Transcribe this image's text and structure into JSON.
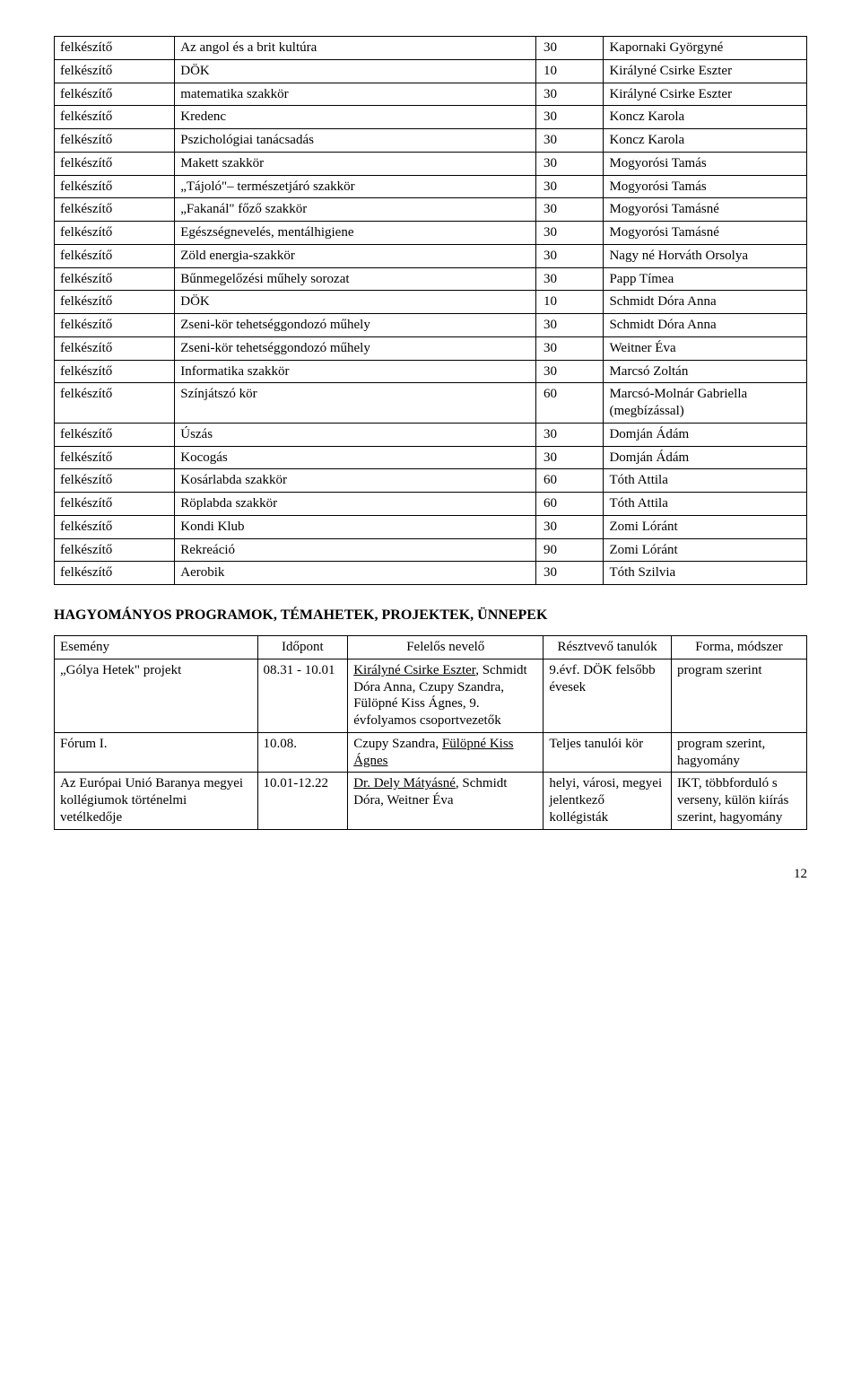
{
  "table1": {
    "rows": [
      [
        "felkészítő",
        "Az angol és a brit kultúra",
        "30",
        "Kapornaki Györgyné"
      ],
      [
        "felkészítő",
        "DÖK",
        "10",
        "Királyné Csirke Eszter"
      ],
      [
        "felkészítő",
        "matematika szakkör",
        "30",
        "Királyné Csirke Eszter"
      ],
      [
        "felkészítő",
        "Kredenc",
        "30",
        "Koncz Karola"
      ],
      [
        "felkészítő",
        "Pszichológiai tanácsadás",
        "30",
        "Koncz Karola"
      ],
      [
        "felkészítő",
        "Makett szakkör",
        "30",
        "Mogyorósi Tamás"
      ],
      [
        "felkészítő",
        "„Tájoló\"– természetjáró szakkör",
        "30",
        "Mogyorósi Tamás"
      ],
      [
        "felkészítő",
        "„Fakanál\" főző szakkör",
        "30",
        "Mogyorósi Tamásné"
      ],
      [
        "felkészítő",
        "Egészségnevelés, mentálhigiene",
        "30",
        "Mogyorósi Tamásné"
      ],
      [
        "felkészítő",
        "Zöld energia-szakkör",
        "30",
        "Nagy né Horváth Orsolya"
      ],
      [
        "felkészítő",
        "Bűnmegelőzési műhely sorozat",
        "30",
        "Papp Tímea"
      ],
      [
        "felkészítő",
        "DÖK",
        "10",
        "Schmidt Dóra Anna"
      ],
      [
        "felkészítő",
        "Zseni-kör tehetséggondozó műhely",
        "30",
        "Schmidt Dóra Anna"
      ],
      [
        "felkészítő",
        "Zseni-kör tehetséggondozó műhely",
        "30",
        "Weitner Éva"
      ],
      [
        "felkészítő",
        "Informatika szakkör",
        "30",
        "Marcsó Zoltán"
      ],
      [
        "felkészítő",
        "Színjátszó kör",
        "60",
        "Marcsó-Molnár Gabriella (megbízással)"
      ],
      [
        "felkészítő",
        "Úszás",
        "30",
        "Domján Ádám"
      ],
      [
        "felkészítő",
        "Kocogás",
        "30",
        "Domján Ádám"
      ],
      [
        "felkészítő",
        "Kosárlabda szakkör",
        "60",
        "Tóth Attila"
      ],
      [
        "felkészítő",
        "Röplabda szakkör",
        "60",
        "Tóth Attila"
      ],
      [
        "felkészítő",
        "Kondi Klub",
        "30",
        "Zomi Lóránt"
      ],
      [
        "felkészítő",
        "Rekreáció",
        "90",
        "Zomi Lóránt"
      ],
      [
        "felkészítő",
        "Aerobik",
        "30",
        "Tóth Szilvia"
      ]
    ]
  },
  "section_heading": "HAGYOMÁNYOS PROGRAMOK, TÉMAHETEK, PROJEKTEK, ÜNNEPEK",
  "table2": {
    "headers": [
      "Esemény",
      "Időpont",
      "Felelős nevelő",
      "Résztvevő tanulók",
      "Forma, módszer"
    ],
    "rows": [
      {
        "c1": "„Gólya Hetek\" projekt",
        "c2": "08.31 - 10.01",
        "c3_pre": "",
        "c3_link": "Királyné Csirke Eszter",
        "c3_post": ", Schmidt Dóra Anna, Czupy Szandra, Fülöpné Kiss Ágnes, 9. évfolyamos csoportvezetők",
        "c4": "9.évf. DÖK felsőbb évesek",
        "c5": "program szerint"
      },
      {
        "c1": "Fórum I.",
        "c2": "10.08.",
        "c3_pre": "Czupy Szandra, ",
        "c3_link": "Fülöpné Kiss Ágnes",
        "c3_post": "",
        "c4": "Teljes tanulói kör",
        "c5": "program szerint, hagyomány"
      },
      {
        "c1": "Az Európai Unió Baranya megyei kollégiumok történelmi vetélkedője",
        "c2": "10.01-12.22",
        "c3_pre": "",
        "c3_link": "Dr. Dely Mátyásné",
        "c3_post": ", Schmidt Dóra, Weitner Éva",
        "c4": "helyi, városi, megyei jelentkező kollégisták",
        "c5": "IKT, többforduló s verseny, külön kiírás szerint, hagyomány"
      }
    ]
  },
  "page_number": "12"
}
